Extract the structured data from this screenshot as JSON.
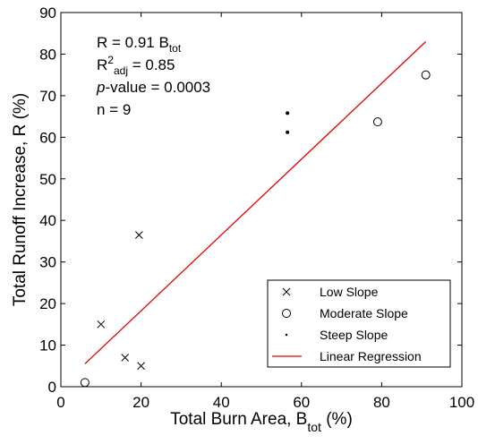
{
  "chart_data": {
    "type": "scatter",
    "xlabel": {
      "main": "Total Burn Area, B",
      "sub": "tot",
      "unit": " (%)"
    },
    "ylabel": "Total Runoff Increase, R (%)",
    "xlim": [
      0,
      100
    ],
    "ylim": [
      0,
      90
    ],
    "x_ticks": [
      0,
      20,
      40,
      60,
      80,
      100
    ],
    "y_ticks": [
      0,
      10,
      20,
      30,
      40,
      50,
      60,
      70,
      80,
      90
    ],
    "grid": false,
    "legend_position": "bottom-right",
    "series": [
      {
        "name": "Low Slope",
        "marker": "x",
        "points": [
          [
            10,
            15
          ],
          [
            16,
            7
          ],
          [
            19.5,
            36.5
          ],
          [
            20,
            5
          ]
        ]
      },
      {
        "name": "Moderate Slope",
        "marker": "circle",
        "points": [
          [
            6,
            1
          ],
          [
            79,
            63.7
          ],
          [
            91,
            75
          ]
        ]
      },
      {
        "name": "Steep Slope",
        "marker": "dot",
        "points": [
          [
            56.5,
            65.8
          ],
          [
            56.5,
            61.2
          ]
        ]
      },
      {
        "name": "Linear Regression",
        "marker": "line",
        "color": "#e00000",
        "points": [
          [
            6,
            5.5
          ],
          [
            91,
            83
          ]
        ]
      }
    ],
    "annotations": {
      "line1": {
        "main": "R = 0.91 B",
        "sub": "tot"
      },
      "line2": {
        "main": "R",
        "sup": "2",
        "sub": "adj",
        "tail": " = 0.85"
      },
      "line3": {
        "italic": "p",
        "tail": "-value = 0.0003"
      },
      "line4": "n = 9"
    }
  }
}
